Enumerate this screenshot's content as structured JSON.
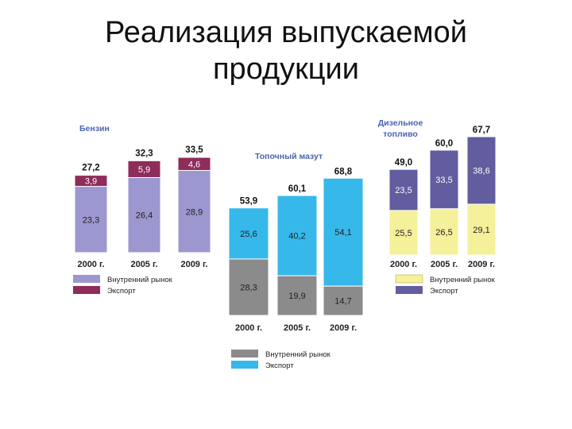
{
  "title": {
    "line1": "Реализация выпускаемой",
    "line2": "продукции"
  },
  "chart_data": [
    {
      "type": "bar",
      "stacked": true,
      "title": "Бензин",
      "categories": [
        "2000 г.",
        "2005 г.",
        "2009 г."
      ],
      "totals": [
        "27,2",
        "32,3",
        "33,5"
      ],
      "series": [
        {
          "name": "Внутренний рынок",
          "values": [
            23.3,
            26.4,
            28.9
          ],
          "labels": [
            "23,3",
            "26,4",
            "28,9"
          ],
          "color": "#9c97cf"
        },
        {
          "name": "Экспорт",
          "values": [
            3.9,
            5.9,
            4.6
          ],
          "labels": [
            "3,9",
            "5,9",
            "4,6"
          ],
          "color": "#8e2c5a"
        }
      ]
    },
    {
      "type": "bar",
      "stacked": true,
      "title": "Топочный мазут",
      "categories": [
        "2000 г.",
        "2005 г.",
        "2009 г."
      ],
      "totals": [
        "53,9",
        "60,1",
        "68,8"
      ],
      "series": [
        {
          "name": "Внутренний рынок",
          "values": [
            28.3,
            19.9,
            14.7
          ],
          "labels": [
            "28,3",
            "19,9",
            "14,7"
          ],
          "color": "#8b8b8b"
        },
        {
          "name": "Экспорт",
          "values": [
            25.6,
            40.2,
            54.1
          ],
          "labels": [
            "25,6",
            "40,2",
            "54,1"
          ],
          "color": "#36b8ea"
        }
      ]
    },
    {
      "type": "bar",
      "stacked": true,
      "title": "Дизельное топливо",
      "categories": [
        "2000 г.",
        "2005 г.",
        "2009 г."
      ],
      "totals": [
        "49,0",
        "60,0",
        "67,7"
      ],
      "series": [
        {
          "name": "Внутренний рынок",
          "values": [
            25.5,
            26.5,
            29.1
          ],
          "labels": [
            "25,5",
            "26,5",
            "29,1"
          ],
          "color": "#f5f09a"
        },
        {
          "name": "Экспорт",
          "values": [
            23.5,
            33.5,
            38.6
          ],
          "labels": [
            "23,5",
            "33,5",
            "38,6"
          ],
          "color": "#615d9e"
        }
      ]
    }
  ],
  "colors": {
    "panel_title": "#4a64b0",
    "bar_label": "#222222",
    "light_label": "#ffffff"
  }
}
